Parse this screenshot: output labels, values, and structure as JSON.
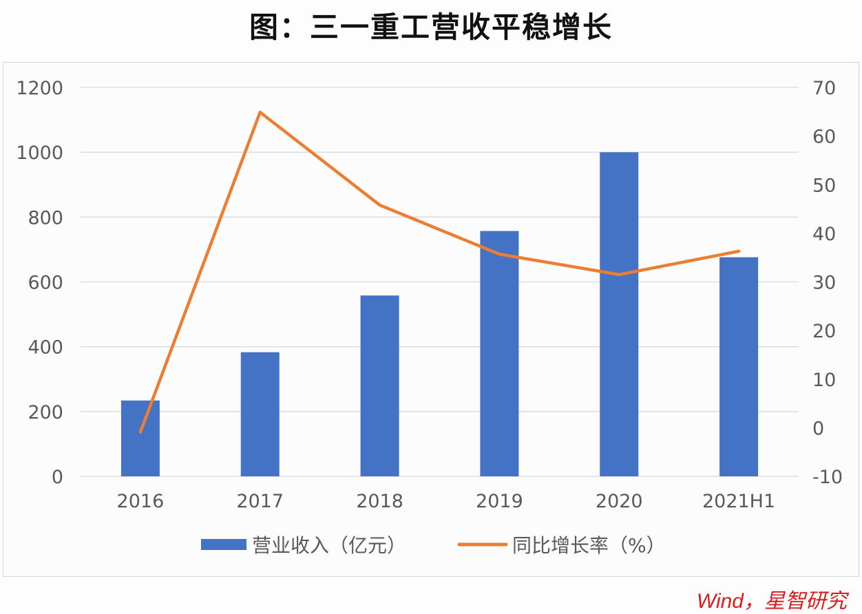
{
  "title": "图：三一重工营收平稳增长",
  "source": "Wind，星智研究",
  "colors": {
    "bar": "#4472c4",
    "line": "#ed7d31",
    "grid": "#d9d9d9",
    "axis_text": "#595959"
  },
  "legend": [
    {
      "label": "营业收入（亿元）",
      "type": "bar",
      "color": "#4472c4"
    },
    {
      "label": "同比增长率（%）",
      "type": "line",
      "color": "#ed7d31"
    }
  ],
  "chart_data": {
    "type": "bar+line",
    "title": "图：三一重工营收平稳增长",
    "categories": [
      "2016",
      "2017",
      "2018",
      "2019",
      "2020",
      "2021H1"
    ],
    "series": [
      {
        "name": "营业收入（亿元）",
        "type": "bar",
        "axis": "left",
        "values": [
          234,
          383,
          558,
          757,
          1000,
          676
        ]
      },
      {
        "name": "同比增长率（%）",
        "type": "line",
        "axis": "right",
        "values": [
          -0.9,
          64.9,
          45.8,
          35.7,
          31.5,
          36.3
        ]
      }
    ],
    "y_left": {
      "ylim": [
        0,
        1200
      ],
      "ticks": [
        "0",
        "200",
        "400",
        "600",
        "800",
        "1000",
        "1200"
      ]
    },
    "y_right": {
      "ylim": [
        -10,
        70
      ],
      "ticks": [
        "-10",
        "0",
        "10",
        "20",
        "30",
        "40",
        "50",
        "60",
        "70"
      ]
    },
    "xlabel": "",
    "ylabel": "",
    "grid": true,
    "legend_position": "bottom"
  }
}
